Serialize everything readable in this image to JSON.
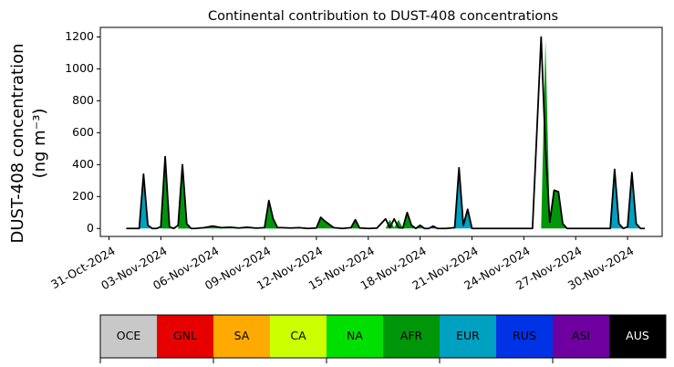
{
  "chart_data": {
    "type": "area",
    "title": "Continental contribution to DUST-408 concentrations",
    "ylabel_line1": "DUST-408 concentration",
    "ylabel_line2": "(ng m⁻³)",
    "xlabel": "",
    "x_range": [
      "2024-10-30T12:00",
      "2024-12-02T00:00"
    ],
    "ylim": [
      -50,
      1260
    ],
    "yticks": [
      0,
      200,
      400,
      600,
      800,
      1000,
      1200
    ],
    "xticks": [
      "31-Oct-2024",
      "03-Nov-2024",
      "06-Nov-2024",
      "09-Nov-2024",
      "12-Nov-2024",
      "15-Nov-2024",
      "18-Nov-2024",
      "21-Nov-2024",
      "24-Nov-2024",
      "27-Nov-2024",
      "30-Nov-2024"
    ],
    "xtick_dates": [
      "2024-10-31",
      "2024-11-03",
      "2024-11-06",
      "2024-11-09",
      "2024-11-12",
      "2024-11-15",
      "2024-11-18",
      "2024-11-21",
      "2024-11-24",
      "2024-11-27",
      "2024-11-30"
    ],
    "series_total": {
      "x": [
        "2024-11-01T00:00",
        "2024-11-01T18:00",
        "2024-11-02T00:00",
        "2024-11-02T06:00",
        "2024-11-02T12:00",
        "2024-11-02T18:00",
        "2024-11-03T00:00",
        "2024-11-03T06:00",
        "2024-11-03T12:00",
        "2024-11-03T18:00",
        "2024-11-04T00:00",
        "2024-11-04T06:00",
        "2024-11-04T12:00",
        "2024-11-04T18:00",
        "2024-11-05T00:00",
        "2024-11-05T12:00",
        "2024-11-06T00:00",
        "2024-11-06T12:00",
        "2024-11-07T00:00",
        "2024-11-07T12:00",
        "2024-11-08T00:00",
        "2024-11-08T12:00",
        "2024-11-09T00:00",
        "2024-11-09T06:00",
        "2024-11-09T12:00",
        "2024-11-09T18:00",
        "2024-11-10T00:00",
        "2024-11-10T12:00",
        "2024-11-11T00:00",
        "2024-11-11T12:00",
        "2024-11-12T00:00",
        "2024-11-12T06:00",
        "2024-11-12T12:00",
        "2024-11-13T00:00",
        "2024-11-13T12:00",
        "2024-11-14T00:00",
        "2024-11-14T06:00",
        "2024-11-14T12:00",
        "2024-11-15T00:00",
        "2024-11-15T12:00",
        "2024-11-16T00:00",
        "2024-11-16T06:00",
        "2024-11-16T12:00",
        "2024-11-16T18:00",
        "2024-11-17T00:00",
        "2024-11-17T06:00",
        "2024-11-17T12:00",
        "2024-11-17T18:00",
        "2024-11-18T00:00",
        "2024-11-18T06:00",
        "2024-11-18T12:00",
        "2024-11-18T18:00",
        "2024-11-19T00:00",
        "2024-11-19T06:00",
        "2024-11-19T12:00",
        "2024-11-20T00:00",
        "2024-11-20T06:00",
        "2024-11-20T12:00",
        "2024-11-20T18:00",
        "2024-11-21T00:00",
        "2024-11-21T06:00",
        "2024-11-21T12:00",
        "2024-11-22T00:00",
        "2024-11-22T12:00",
        "2024-11-23T00:00",
        "2024-11-23T12:00",
        "2024-11-24T00:00",
        "2024-11-24T12:00",
        "2024-11-25T00:00",
        "2024-11-25T06:00",
        "2024-11-25T12:00",
        "2024-11-25T18:00",
        "2024-11-26T00:00",
        "2024-11-26T06:00",
        "2024-11-26T12:00",
        "2024-11-26T18:00",
        "2024-11-27T00:00",
        "2024-11-27T12:00",
        "2024-11-28T00:00",
        "2024-11-28T12:00",
        "2024-11-29T00:00",
        "2024-11-29T06:00",
        "2024-11-29T12:00",
        "2024-11-29T18:00",
        "2024-11-30T00:00",
        "2024-11-30T06:00",
        "2024-11-30T12:00",
        "2024-11-30T18:00",
        "2024-12-01T00:00"
      ],
      "y": [
        0,
        0,
        340,
        20,
        0,
        0,
        10,
        450,
        10,
        0,
        20,
        400,
        30,
        0,
        0,
        5,
        15,
        5,
        8,
        3,
        8,
        2,
        5,
        175,
        60,
        5,
        5,
        3,
        5,
        0,
        3,
        70,
        45,
        5,
        0,
        5,
        55,
        3,
        0,
        2,
        60,
        5,
        60,
        5,
        3,
        100,
        20,
        0,
        20,
        0,
        0,
        15,
        0,
        0,
        0,
        5,
        380,
        20,
        120,
        0,
        0,
        0,
        0,
        0,
        0,
        0,
        0,
        0,
        1200,
        500,
        40,
        240,
        230,
        30,
        0,
        0,
        0,
        0,
        0,
        0,
        0,
        370,
        30,
        0,
        10,
        350,
        30,
        0,
        0
      ]
    },
    "areas": [
      {
        "series": "EUR",
        "x": [
          "2024-11-01T18:00",
          "2024-11-02T00:00",
          "2024-11-02T06:00",
          "2024-11-02T12:00"
        ],
        "y": [
          0,
          330,
          20,
          0
        ]
      },
      {
        "series": "EUR",
        "x": [
          "2024-11-03T00:00",
          "2024-11-03T06:00",
          "2024-11-03T12:00",
          "2024-11-03T18:00"
        ],
        "y": [
          0,
          160,
          10,
          0
        ]
      },
      {
        "series": "AFR",
        "x": [
          "2024-11-03T00:00",
          "2024-11-03T06:00",
          "2024-11-03T12:00",
          "2024-11-03T18:00"
        ],
        "y": [
          0,
          450,
          10,
          0
        ]
      },
      {
        "series": "EUR",
        "x": [
          "2024-11-04T00:00",
          "2024-11-04T06:00",
          "2024-11-04T12:00",
          "2024-11-04T18:00"
        ],
        "y": [
          0,
          150,
          20,
          0
        ]
      },
      {
        "series": "AFR",
        "x": [
          "2024-11-04T00:00",
          "2024-11-04T06:00",
          "2024-11-04T12:00",
          "2024-11-04T18:00"
        ],
        "y": [
          0,
          390,
          30,
          0
        ]
      },
      {
        "series": "AFR",
        "x": [
          "2024-11-05T00:00",
          "2024-11-06T00:00",
          "2024-11-06T12:00",
          "2024-11-07T00:00",
          "2024-11-07T12:00",
          "2024-11-08T00:00",
          "2024-11-08T12:00",
          "2024-11-09T00:00"
        ],
        "y": [
          0,
          15,
          5,
          8,
          3,
          8,
          2,
          0
        ]
      },
      {
        "series": "EUR",
        "x": [
          "2024-11-09T00:00",
          "2024-11-09T06:00",
          "2024-11-09T12:00",
          "2024-11-09T18:00"
        ],
        "y": [
          0,
          40,
          10,
          0
        ]
      },
      {
        "series": "AFR",
        "x": [
          "2024-11-09T00:00",
          "2024-11-09T06:00",
          "2024-11-09T12:00",
          "2024-11-09T18:00"
        ],
        "y": [
          0,
          175,
          60,
          0
        ]
      },
      {
        "series": "AFR",
        "x": [
          "2024-11-12T00:00",
          "2024-11-12T06:00",
          "2024-11-12T12:00",
          "2024-11-13T00:00"
        ],
        "y": [
          0,
          70,
          45,
          0
        ]
      },
      {
        "series": "AFR",
        "x": [
          "2024-11-14T00:00",
          "2024-11-14T06:00",
          "2024-11-14T12:00",
          "2024-11-15T00:00"
        ],
        "y": [
          0,
          55,
          3,
          0
        ]
      },
      {
        "series": "AFR",
        "x": [
          "2024-11-16T00:00",
          "2024-11-16T06:00",
          "2024-11-16T12:00",
          "2024-11-16T18:00",
          "2024-11-17T00:00",
          "2024-11-17T06:00",
          "2024-11-17T12:00",
          "2024-11-17T18:00",
          "2024-11-18T00:00",
          "2024-11-18T06:00"
        ],
        "y": [
          0,
          55,
          5,
          55,
          3,
          95,
          20,
          0,
          18,
          0
        ]
      },
      {
        "series": "RUS",
        "x": [
          "2024-11-18T12:00",
          "2024-11-18T18:00",
          "2024-11-19T00:00"
        ],
        "y": [
          0,
          15,
          0
        ]
      },
      {
        "series": "EUR",
        "x": [
          "2024-11-20T00:00",
          "2024-11-20T06:00",
          "2024-11-20T12:00",
          "2024-11-20T18:00",
          "2024-11-21T00:00"
        ],
        "y": [
          0,
          380,
          20,
          115,
          0
        ]
      },
      {
        "series": "AFR",
        "x": [
          "2024-11-25T00:00",
          "2024-11-25T06:00",
          "2024-11-25T12:00",
          "2024-11-25T18:00",
          "2024-11-26T00:00",
          "2024-11-26T06:00",
          "2024-11-26T12:00"
        ],
        "y": [
          0,
          1180,
          40,
          240,
          230,
          30,
          0
        ]
      },
      {
        "series": "EUR",
        "x": [
          "2024-11-29T00:00",
          "2024-11-29T06:00",
          "2024-11-29T12:00",
          "2024-11-29T18:00"
        ],
        "y": [
          0,
          370,
          30,
          0
        ]
      },
      {
        "series": "EUR",
        "x": [
          "2024-11-30T00:00",
          "2024-11-30T06:00",
          "2024-11-30T12:00",
          "2024-11-30T18:00"
        ],
        "y": [
          0,
          350,
          30,
          0
        ]
      }
    ],
    "legend": {
      "placement": "bottom",
      "entries": [
        {
          "label": "OCE",
          "color": "#c8c8c8",
          "text_color": "#000000"
        },
        {
          "label": "GNL",
          "color": "#e60000",
          "text_color": "#000000"
        },
        {
          "label": "SA",
          "color": "#ffaa00",
          "text_color": "#000000"
        },
        {
          "label": "CA",
          "color": "#ccff00",
          "text_color": "#000000"
        },
        {
          "label": "NA",
          "color": "#00e000",
          "text_color": "#000000"
        },
        {
          "label": "AFR",
          "color": "#00960a",
          "text_color": "#000000"
        },
        {
          "label": "EUR",
          "color": "#00a0c0",
          "text_color": "#000000"
        },
        {
          "label": "RUS",
          "color": "#0032e6",
          "text_color": "#000000"
        },
        {
          "label": "ASI",
          "color": "#6e00a0",
          "text_color": "#000000"
        },
        {
          "label": "AUS",
          "color": "#000000",
          "text_color": "#ffffff"
        }
      ]
    },
    "grid": false
  }
}
